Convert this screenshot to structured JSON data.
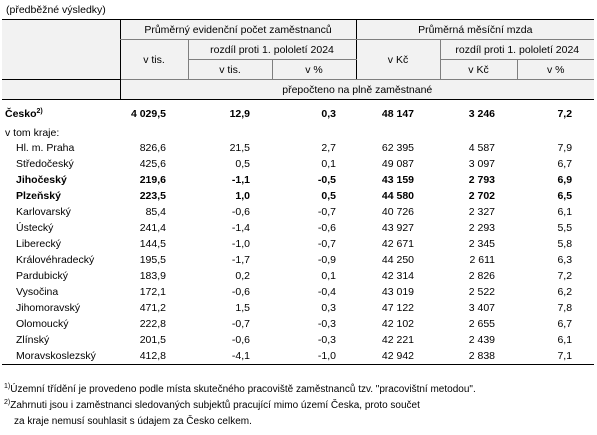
{
  "preliminary_label": "(předběžné výsledky)",
  "header": {
    "group1_title": "Průměrný evidenční počet zaměstnanců",
    "group2_title": "Průměrná měsíční mzda",
    "diff_label_1": "rozdíl proti 1. pololetí 2024",
    "diff_label_2": "rozdíl proti 1. pololetí 2024",
    "col1_unit": "v tis.",
    "col2_unit": "v tis.",
    "col3_unit": "v %",
    "col4_unit": "v Kč",
    "col5_unit": "v Kč",
    "col6_unit": "v %",
    "recalc_note": "přepočteno na plně zaměstnané"
  },
  "total": {
    "name": "Česko",
    "footnote_mark": "2)",
    "values": [
      "4 029,5",
      "12,9",
      "0,3",
      "48 147",
      "3 246",
      "7,2"
    ]
  },
  "subheading": "v tom kraje:",
  "rows": [
    {
      "name": "Hl. m. Praha",
      "values": [
        "826,6",
        "21,5",
        "2,7",
        "62 395",
        "4 587",
        "7,9"
      ],
      "bold": false
    },
    {
      "name": "Středočeský",
      "values": [
        "425,6",
        "0,5",
        "0,1",
        "49 087",
        "3 097",
        "6,7"
      ],
      "bold": false
    },
    {
      "name": "Jihočeský",
      "values": [
        "219,6",
        "-1,1",
        "-0,5",
        "43 159",
        "2 793",
        "6,9"
      ],
      "bold": true
    },
    {
      "name": "Plzeňský",
      "values": [
        "223,5",
        "1,0",
        "0,5",
        "44 580",
        "2 702",
        "6,5"
      ],
      "bold": true
    },
    {
      "name": "Karlovarský",
      "values": [
        "85,4",
        "-0,6",
        "-0,7",
        "40 726",
        "2 327",
        "6,1"
      ],
      "bold": false
    },
    {
      "name": "Ústecký",
      "values": [
        "241,4",
        "-1,4",
        "-0,6",
        "43 927",
        "2 293",
        "5,5"
      ],
      "bold": false
    },
    {
      "name": "Liberecký",
      "values": [
        "144,5",
        "-1,0",
        "-0,7",
        "42 671",
        "2 345",
        "5,8"
      ],
      "bold": false
    },
    {
      "name": "Královéhradecký",
      "values": [
        "195,5",
        "-1,7",
        "-0,9",
        "44 250",
        "2 611",
        "6,3"
      ],
      "bold": false
    },
    {
      "name": "Pardubický",
      "values": [
        "183,9",
        "0,2",
        "0,1",
        "42 314",
        "2 826",
        "7,2"
      ],
      "bold": false
    },
    {
      "name": "Vysočina",
      "values": [
        "172,1",
        "-0,6",
        "-0,4",
        "43 019",
        "2 522",
        "6,2"
      ],
      "bold": false
    },
    {
      "name": "Jihomoravský",
      "values": [
        "471,2",
        "1,5",
        "0,3",
        "47 122",
        "3 407",
        "7,8"
      ],
      "bold": false
    },
    {
      "name": "Olomoucký",
      "values": [
        "222,8",
        "-0,7",
        "-0,3",
        "42 102",
        "2 655",
        "6,7"
      ],
      "bold": false
    },
    {
      "name": "Zlínský",
      "values": [
        "201,5",
        "-0,6",
        "-0,3",
        "42 221",
        "2 439",
        "6,1"
      ],
      "bold": false
    },
    {
      "name": "Moravskoslezský",
      "values": [
        "412,8",
        "-4,1",
        "-1,0",
        "42 942",
        "2 838",
        "7,1"
      ],
      "bold": false
    }
  ],
  "notes": {
    "note1_mark": "1)",
    "note1_text": "Územní  třídění je  provedeno  podle  místa skutečného pracoviště zaměstnanců tzv. \"pracovištní metodou\".",
    "note2_mark": "2)",
    "note2_text": "Zahrnuti jsou i zaměstnanci sledovaných subjektů pracující mimo území Česka, proto součet",
    "note2_cont": "za kraje nemusí souhlasit s údajem za Česko celkem."
  }
}
